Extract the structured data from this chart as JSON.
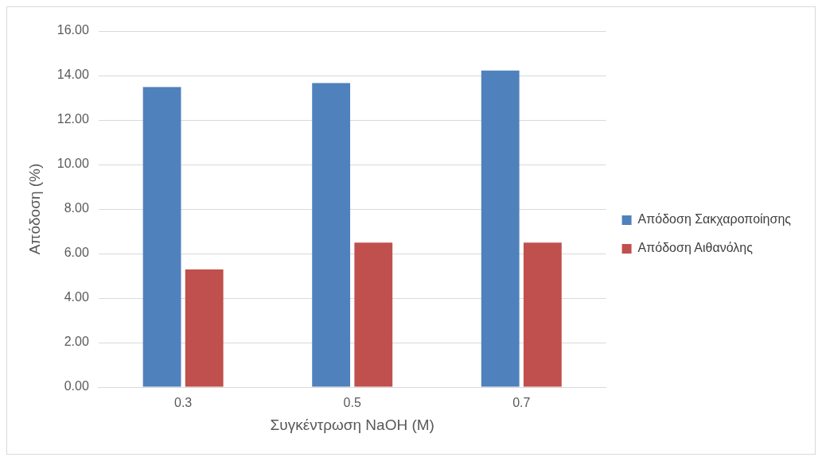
{
  "chart_data": {
    "type": "bar",
    "xlabel": "Συγκέντρωση NaOH (M)",
    "ylabel": "Απόδοση (%)",
    "categories": [
      "0.3",
      "0.5",
      "0.7"
    ],
    "series": [
      {
        "name": "Απόδοση Σακχαροποίησης",
        "color": "#4f81bd",
        "values": [
          13.48,
          13.66,
          14.22
        ]
      },
      {
        "name": "Απόδοση Αιθανόλης",
        "color": "#c0504d",
        "values": [
          5.29,
          6.49,
          6.49
        ]
      }
    ],
    "ylim": [
      0,
      16
    ],
    "yticks": [
      {
        "value": 0,
        "label": "0.00"
      },
      {
        "value": 2,
        "label": "2.00"
      },
      {
        "value": 4,
        "label": "4.00"
      },
      {
        "value": 6,
        "label": "6.00"
      },
      {
        "value": 8,
        "label": "8.00"
      },
      {
        "value": 10,
        "label": "10.00"
      },
      {
        "value": 12,
        "label": "12.00"
      },
      {
        "value": 14,
        "label": "14.00"
      },
      {
        "value": 16,
        "label": "16.00"
      }
    ],
    "grid": "y",
    "legend": "right"
  }
}
